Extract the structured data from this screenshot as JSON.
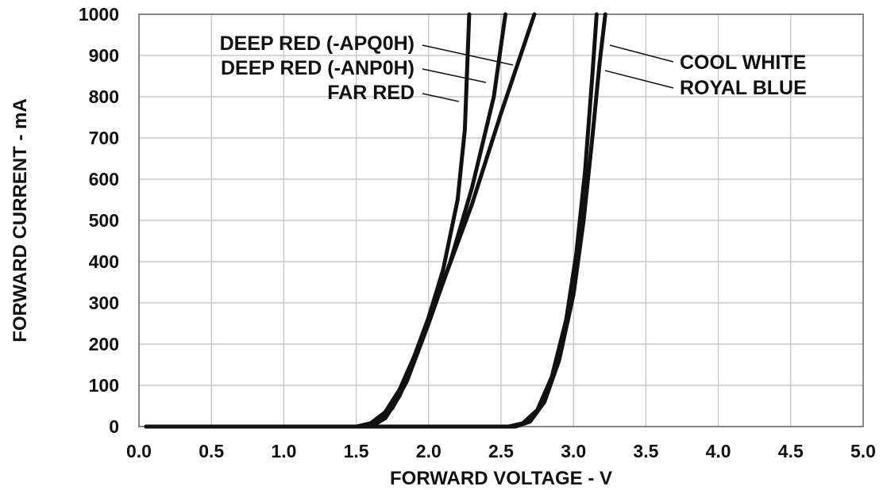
{
  "chart_data": {
    "type": "line",
    "title": "",
    "xlabel": "FORWARD VOLTAGE - V",
    "ylabel": "FORWARD CURRENT - mA",
    "xlim": [
      0.0,
      5.0
    ],
    "ylim": [
      0,
      1000
    ],
    "x_ticks": [
      "0.0",
      "0.5",
      "1.0",
      "1.5",
      "2.0",
      "2.5",
      "3.0",
      "3.5",
      "4.0",
      "4.5",
      "5.0"
    ],
    "y_ticks": [
      "0",
      "100",
      "200",
      "300",
      "400",
      "500",
      "600",
      "700",
      "800",
      "900",
      "1000"
    ],
    "grid": true,
    "series": [
      {
        "name": "DEEP RED (-APQ0H)",
        "points": [
          [
            0.05,
            0
          ],
          [
            1.5,
            0
          ],
          [
            1.6,
            8
          ],
          [
            1.7,
            35
          ],
          [
            1.8,
            90
          ],
          [
            1.9,
            170
          ],
          [
            2.0,
            265
          ],
          [
            2.1,
            380
          ],
          [
            2.2,
            550
          ],
          [
            2.25,
            720
          ],
          [
            2.28,
            1000
          ]
        ]
      },
      {
        "name": "DEEP RED (-ANP0H)",
        "points": [
          [
            0.05,
            0
          ],
          [
            1.55,
            0
          ],
          [
            1.65,
            10
          ],
          [
            1.75,
            45
          ],
          [
            1.85,
            110
          ],
          [
            2.0,
            250
          ],
          [
            2.15,
            400
          ],
          [
            2.3,
            580
          ],
          [
            2.45,
            800
          ],
          [
            2.53,
            1000
          ]
        ]
      },
      {
        "name": "FAR RED",
        "points": [
          [
            0.05,
            0
          ],
          [
            1.6,
            0
          ],
          [
            1.7,
            20
          ],
          [
            1.8,
            75
          ],
          [
            1.9,
            160
          ],
          [
            2.0,
            255
          ],
          [
            2.1,
            350
          ],
          [
            2.3,
            540
          ],
          [
            2.5,
            760
          ],
          [
            2.73,
            1000
          ]
        ]
      },
      {
        "name": "COOL WHITE",
        "points": [
          [
            0.05,
            0
          ],
          [
            2.55,
            0
          ],
          [
            2.65,
            8
          ],
          [
            2.75,
            40
          ],
          [
            2.85,
            120
          ],
          [
            2.95,
            260
          ],
          [
            3.02,
            420
          ],
          [
            3.08,
            620
          ],
          [
            3.13,
            850
          ],
          [
            3.16,
            1000
          ]
        ]
      },
      {
        "name": "ROYAL BLUE",
        "points": [
          [
            0.05,
            0
          ],
          [
            2.6,
            0
          ],
          [
            2.7,
            12
          ],
          [
            2.8,
            60
          ],
          [
            2.9,
            160
          ],
          [
            3.0,
            320
          ],
          [
            3.07,
            500
          ],
          [
            3.13,
            700
          ],
          [
            3.18,
            880
          ],
          [
            3.22,
            1000
          ]
        ]
      }
    ],
    "annotations": [
      "DEEP RED (-APQ0H)",
      "DEEP RED (-ANP0H)",
      "FAR RED",
      "COOL WHITE",
      "ROYAL BLUE"
    ]
  }
}
